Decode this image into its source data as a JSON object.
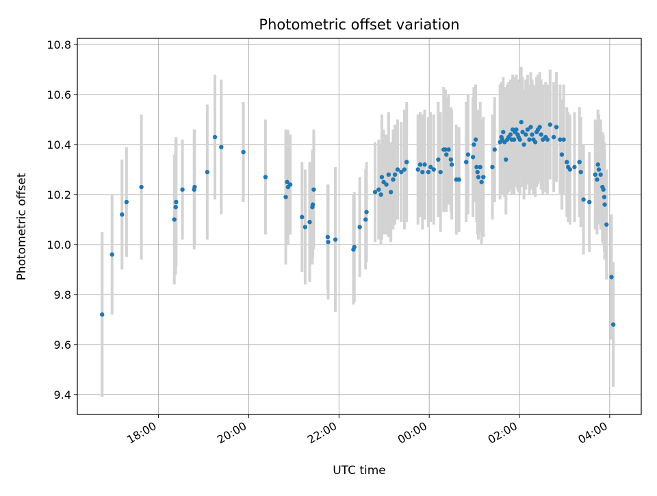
{
  "chart_data": {
    "type": "scatter",
    "title": "Photometric offset variation",
    "xlabel": "UTC time",
    "ylabel": "Photometric offset",
    "x_unit": "UTC hour of night (values above 24 continue past midnight)",
    "xlim": [
      16.2,
      28.7
    ],
    "ylim": [
      9.32,
      10.825
    ],
    "xticks": [
      {
        "value": 18,
        "label": "18:00"
      },
      {
        "value": 20,
        "label": "20:00"
      },
      {
        "value": 22,
        "label": "22:00"
      },
      {
        "value": 24,
        "label": "00:00"
      },
      {
        "value": 26,
        "label": "02:00"
      },
      {
        "value": 28,
        "label": "04:00"
      }
    ],
    "yticks": [
      {
        "value": 9.4,
        "label": "9.4"
      },
      {
        "value": 9.6,
        "label": "9.6"
      },
      {
        "value": 9.8,
        "label": "9.8"
      },
      {
        "value": 10.0,
        "label": "10.0"
      },
      {
        "value": 10.2,
        "label": "10.2"
      },
      {
        "value": 10.4,
        "label": "10.4"
      },
      {
        "value": 10.6,
        "label": "10.6"
      },
      {
        "value": 10.8,
        "label": "10.8"
      }
    ],
    "grid": true,
    "colors": {
      "point": "#1f77b4",
      "errorbar": "#d3d3d3",
      "grid": "#b0b0b0",
      "axes": "#000000"
    },
    "points": [
      [
        16.75,
        9.72,
        0.33
      ],
      [
        16.97,
        9.96,
        0.24
      ],
      [
        17.19,
        10.12,
        0.22
      ],
      [
        17.29,
        10.17,
        0.22
      ],
      [
        17.62,
        10.23,
        0.29
      ],
      [
        18.35,
        10.1,
        0.26
      ],
      [
        18.38,
        10.15,
        0.27
      ],
      [
        18.39,
        10.17,
        0.26
      ],
      [
        18.53,
        10.22,
        0.2
      ],
      [
        18.79,
        10.22,
        0.24
      ],
      [
        18.8,
        10.23,
        0.23
      ],
      [
        19.08,
        10.29,
        0.27
      ],
      [
        19.25,
        10.43,
        0.25
      ],
      [
        19.39,
        10.39,
        0.27
      ],
      [
        19.88,
        10.37,
        0.2
      ],
      [
        20.37,
        10.27,
        0.23
      ],
      [
        20.82,
        10.19,
        0.27
      ],
      [
        20.85,
        10.25,
        0.21
      ],
      [
        20.87,
        10.23,
        0.23
      ],
      [
        20.92,
        10.24,
        0.2
      ],
      [
        21.18,
        10.11,
        0.22
      ],
      [
        21.25,
        10.07,
        0.23
      ],
      [
        21.35,
        10.09,
        0.24
      ],
      [
        21.41,
        10.15,
        0.23
      ],
      [
        21.42,
        10.16,
        0.21
      ],
      [
        21.44,
        10.22,
        0.24
      ],
      [
        21.75,
        10.03,
        0.21
      ],
      [
        21.76,
        10.01,
        0.23
      ],
      [
        21.92,
        10.02,
        0.29
      ],
      [
        22.32,
        9.98,
        0.22
      ],
      [
        22.34,
        9.99,
        0.22
      ],
      [
        22.46,
        10.07,
        0.2
      ],
      [
        22.59,
        10.1,
        0.2
      ],
      [
        22.61,
        10.13,
        0.2
      ],
      [
        22.8,
        10.21,
        0.2
      ],
      [
        22.88,
        10.22,
        0.2
      ],
      [
        22.93,
        10.2,
        0.2
      ],
      [
        22.95,
        10.27,
        0.25
      ],
      [
        22.99,
        10.25,
        0.21
      ],
      [
        23.05,
        10.24,
        0.2
      ],
      [
        23.1,
        10.28,
        0.25
      ],
      [
        23.15,
        10.21,
        0.2
      ],
      [
        23.2,
        10.26,
        0.2
      ],
      [
        23.24,
        10.28,
        0.2
      ],
      [
        23.3,
        10.3,
        0.2
      ],
      [
        23.38,
        10.29,
        0.2
      ],
      [
        23.45,
        10.3,
        0.24
      ],
      [
        23.5,
        10.33,
        0.24
      ],
      [
        23.75,
        10.3,
        0.22
      ],
      [
        23.8,
        10.32,
        0.21
      ],
      [
        23.85,
        10.29,
        0.23
      ],
      [
        23.9,
        10.32,
        0.22
      ],
      [
        23.98,
        10.29,
        0.22
      ],
      [
        24.03,
        10.31,
        0.22
      ],
      [
        24.1,
        10.3,
        0.22
      ],
      [
        24.2,
        10.34,
        0.23
      ],
      [
        24.25,
        10.29,
        0.24
      ],
      [
        24.32,
        10.38,
        0.25
      ],
      [
        24.36,
        10.38,
        0.24
      ],
      [
        24.38,
        10.36,
        0.23
      ],
      [
        24.43,
        10.38,
        0.22
      ],
      [
        24.48,
        10.34,
        0.21
      ],
      [
        24.5,
        10.32,
        0.22
      ],
      [
        24.6,
        10.26,
        0.22
      ],
      [
        24.66,
        10.26,
        0.21
      ],
      [
        24.82,
        10.33,
        0.24
      ],
      [
        24.86,
        10.36,
        0.24
      ],
      [
        24.97,
        10.35,
        0.24
      ],
      [
        24.99,
        10.4,
        0.23
      ],
      [
        25.03,
        10.42,
        0.22
      ],
      [
        25.05,
        10.31,
        0.22
      ],
      [
        25.07,
        10.29,
        0.25
      ],
      [
        25.09,
        10.27,
        0.25
      ],
      [
        25.13,
        10.31,
        0.26
      ],
      [
        25.16,
        10.25,
        0.25
      ],
      [
        25.2,
        10.27,
        0.24
      ],
      [
        25.4,
        10.31,
        0.21
      ],
      [
        25.45,
        10.38,
        0.21
      ],
      [
        25.57,
        10.41,
        0.23
      ],
      [
        25.6,
        10.43,
        0.22
      ],
      [
        25.62,
        10.42,
        0.22
      ],
      [
        25.64,
        10.45,
        0.22
      ],
      [
        25.67,
        10.41,
        0.22
      ],
      [
        25.7,
        10.34,
        0.22
      ],
      [
        25.73,
        10.42,
        0.22
      ],
      [
        25.76,
        10.43,
        0.22
      ],
      [
        25.8,
        10.44,
        0.22
      ],
      [
        25.83,
        10.42,
        0.22
      ],
      [
        25.85,
        10.46,
        0.22
      ],
      [
        25.88,
        10.42,
        0.22
      ],
      [
        25.9,
        10.45,
        0.22
      ],
      [
        25.93,
        10.46,
        0.22
      ],
      [
        25.96,
        10.44,
        0.22
      ],
      [
        25.98,
        10.43,
        0.22
      ],
      [
        26.01,
        10.42,
        0.22
      ],
      [
        26.04,
        10.49,
        0.22
      ],
      [
        26.07,
        10.45,
        0.22
      ],
      [
        26.1,
        10.4,
        0.22
      ],
      [
        26.14,
        10.44,
        0.22
      ],
      [
        26.18,
        10.46,
        0.22
      ],
      [
        26.22,
        10.42,
        0.22
      ],
      [
        26.25,
        10.47,
        0.22
      ],
      [
        26.28,
        10.44,
        0.22
      ],
      [
        26.31,
        10.42,
        0.22
      ],
      [
        26.35,
        10.41,
        0.22
      ],
      [
        26.38,
        10.45,
        0.22
      ],
      [
        26.41,
        10.46,
        0.22
      ],
      [
        26.45,
        10.47,
        0.22
      ],
      [
        26.48,
        10.44,
        0.22
      ],
      [
        26.52,
        10.42,
        0.22
      ],
      [
        26.58,
        10.43,
        0.22
      ],
      [
        26.62,
        10.42,
        0.22
      ],
      [
        26.68,
        10.48,
        0.22
      ],
      [
        26.76,
        10.43,
        0.22
      ],
      [
        26.82,
        10.47,
        0.22
      ],
      [
        26.9,
        10.42,
        0.22
      ],
      [
        26.94,
        10.36,
        0.22
      ],
      [
        26.98,
        10.42,
        0.22
      ],
      [
        27.05,
        10.33,
        0.22
      ],
      [
        27.08,
        10.31,
        0.22
      ],
      [
        27.12,
        10.3,
        0.22
      ],
      [
        27.22,
        10.31,
        0.22
      ],
      [
        27.33,
        10.33,
        0.22
      ],
      [
        27.36,
        10.29,
        0.22
      ],
      [
        27.42,
        10.18,
        0.22
      ],
      [
        27.55,
        10.17,
        0.2
      ],
      [
        27.68,
        10.28,
        0.22
      ],
      [
        27.72,
        10.26,
        0.22
      ],
      [
        27.74,
        10.32,
        0.22
      ],
      [
        27.76,
        10.3,
        0.22
      ],
      [
        27.8,
        10.28,
        0.22
      ],
      [
        27.84,
        10.23,
        0.22
      ],
      [
        27.86,
        10.22,
        0.22
      ],
      [
        27.88,
        10.19,
        0.22
      ],
      [
        27.89,
        10.16,
        0.22
      ],
      [
        27.93,
        10.08,
        0.22
      ],
      [
        28.04,
        9.87,
        0.25
      ],
      [
        28.08,
        9.68,
        0.25
      ]
    ]
  }
}
